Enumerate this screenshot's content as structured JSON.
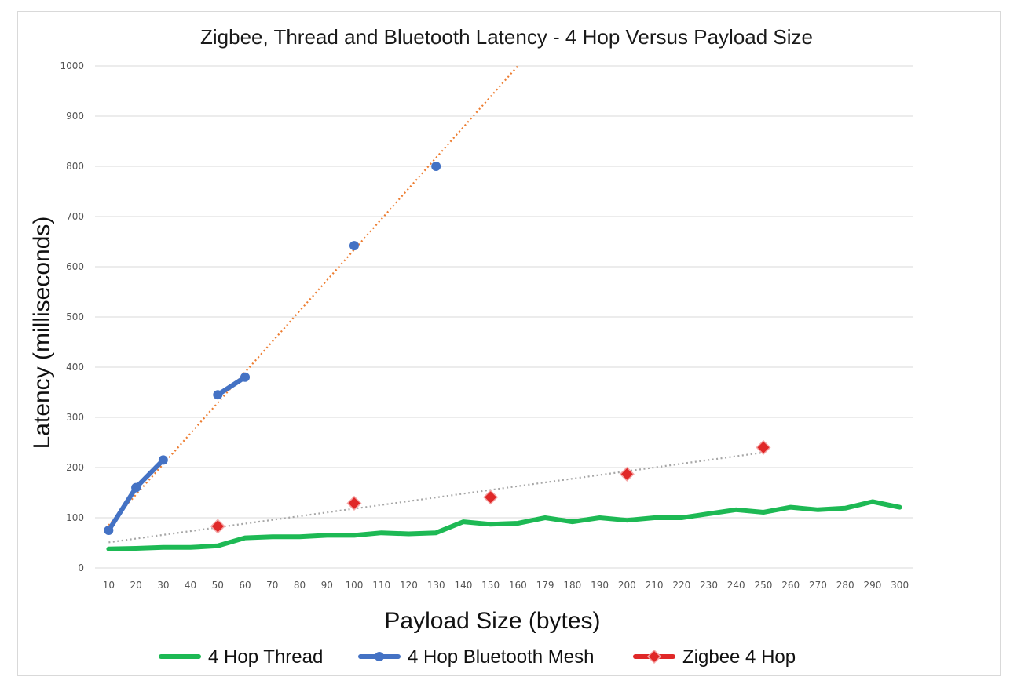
{
  "chart_data": {
    "type": "line",
    "title": "Zigbee, Thread and Bluetooth Latency - 4 Hop Versus Payload Size",
    "xlabel": "Payload Size (bytes)",
    "ylabel": "Latency (milliseconds)",
    "categories": [
      "10",
      "20",
      "30",
      "40",
      "50",
      "60",
      "70",
      "80",
      "90",
      "100",
      "110",
      "120",
      "130",
      "140",
      "150",
      "160",
      "179",
      "180",
      "190",
      "200",
      "210",
      "220",
      "230",
      "240",
      "250",
      "260",
      "270",
      "280",
      "290",
      "300"
    ],
    "ylim": [
      0,
      1000
    ],
    "yticks": [
      "0",
      "100",
      "200",
      "300",
      "400",
      "500",
      "600",
      "700",
      "800",
      "900",
      "1000"
    ],
    "grid": true,
    "legend": "bottom",
    "series": [
      {
        "name": "4 Hop Thread",
        "color": "#1db954",
        "marker": "none",
        "values": [
          38,
          39,
          41,
          41,
          44,
          60,
          62,
          62,
          65,
          65,
          70,
          68,
          70,
          92,
          87,
          89,
          100,
          92,
          100,
          95,
          100,
          100,
          108,
          116,
          111,
          121,
          116,
          119,
          132,
          121
        ]
      },
      {
        "name": "4 Hop Bluetooth Mesh",
        "color": "#4472c4",
        "marker": "circle",
        "values": [
          75,
          160,
          215,
          null,
          345,
          380,
          null,
          null,
          null,
          642,
          null,
          null,
          800,
          null,
          null,
          null,
          null,
          null,
          null,
          null,
          null,
          null,
          null,
          null,
          null,
          null,
          null,
          null,
          null,
          null
        ]
      },
      {
        "name": "Zigbee 4 Hop",
        "color": "#e02828",
        "marker": "diamond",
        "values": [
          null,
          null,
          null,
          null,
          83,
          null,
          null,
          null,
          null,
          129,
          null,
          null,
          null,
          null,
          141,
          null,
          null,
          null,
          null,
          187,
          null,
          null,
          null,
          null,
          240,
          null,
          null,
          null,
          null,
          null
        ]
      }
    ],
    "trendlines": [
      {
        "of": "4 Hop Bluetooth Mesh",
        "color": "#ed7d31",
        "style": "dotted",
        "from": {
          "x": "10",
          "y": 85
        },
        "to": {
          "x": "160",
          "y": 1000
        }
      },
      {
        "of": "Zigbee 4 Hop",
        "color": "#a6a6a6",
        "style": "dotted",
        "from": {
          "x": "10",
          "y": 51
        },
        "to": {
          "x": "250",
          "y": 230
        }
      }
    ]
  }
}
